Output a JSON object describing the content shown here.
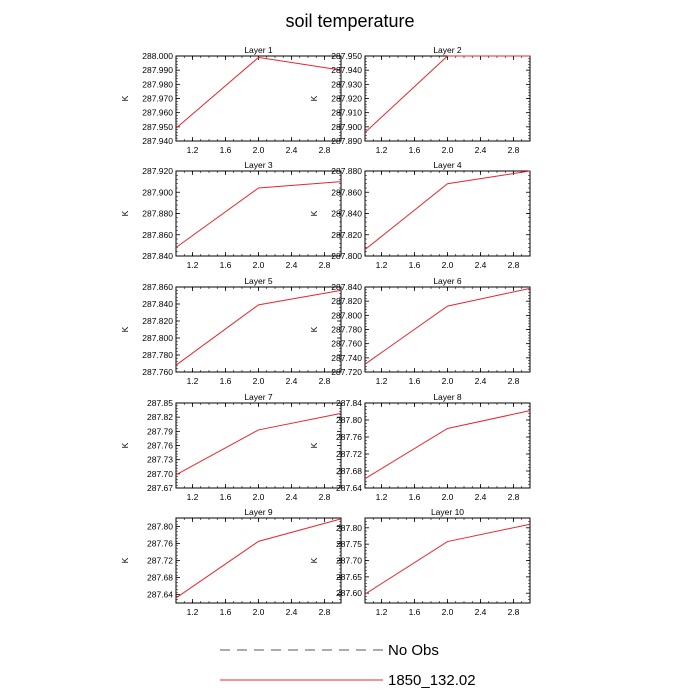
{
  "title": "soil temperature",
  "legend": [
    {
      "label": "No Obs",
      "style": "dashed",
      "color": "#55557a"
    },
    {
      "label": "1850_132.02",
      "style": "solid",
      "color": "#e8262b"
    }
  ],
  "chart_data": [
    {
      "type": "line",
      "title": "Layer 1",
      "ylabel": "K",
      "xlim": [
        1.0,
        3.0
      ],
      "ylim": [
        287.94,
        288.0
      ],
      "xticks": [
        1.2,
        1.6,
        2.0,
        2.4,
        2.8
      ],
      "xtick_labels": [
        "1.2",
        "1.6",
        "2.0",
        "2.4",
        "2.8"
      ],
      "yticks": [
        287.94,
        287.95,
        287.96,
        287.97,
        287.98,
        287.99,
        288.0
      ],
      "ytick_labels": [
        "287.940",
        "287.950",
        "287.960",
        "287.970",
        "287.980",
        "287.990",
        "288.000"
      ],
      "series": [
        {
          "name": "1850_132.02",
          "x": [
            1.0,
            2.0,
            3.0
          ],
          "y": [
            287.949,
            287.999,
            287.99
          ]
        }
      ]
    },
    {
      "type": "line",
      "title": "Layer 2",
      "ylabel": "K",
      "xlim": [
        1.0,
        3.0
      ],
      "ylim": [
        287.89,
        287.95
      ],
      "xticks": [
        1.2,
        1.6,
        2.0,
        2.4,
        2.8
      ],
      "xtick_labels": [
        "1.2",
        "1.6",
        "2.0",
        "2.4",
        "2.8"
      ],
      "yticks": [
        287.89,
        287.9,
        287.91,
        287.92,
        287.93,
        287.94,
        287.95
      ],
      "ytick_labels": [
        "287.890",
        "287.900",
        "287.910",
        "287.920",
        "287.930",
        "287.940",
        "287.950"
      ],
      "series": [
        {
          "name": "1850_132.02",
          "x": [
            1.0,
            2.0,
            3.0
          ],
          "y": [
            287.896,
            287.95,
            287.95
          ]
        }
      ]
    },
    {
      "type": "line",
      "title": "Layer 3",
      "ylabel": "K",
      "xlim": [
        1.0,
        3.0
      ],
      "ylim": [
        287.84,
        287.92
      ],
      "xticks": [
        1.2,
        1.6,
        2.0,
        2.4,
        2.8
      ],
      "xtick_labels": [
        "1.2",
        "1.6",
        "2.0",
        "2.4",
        "2.8"
      ],
      "yticks": [
        287.84,
        287.86,
        287.88,
        287.9,
        287.92
      ],
      "ytick_labels": [
        "287.840",
        "287.860",
        "287.880",
        "287.900",
        "287.920"
      ],
      "series": [
        {
          "name": "1850_132.02",
          "x": [
            1.0,
            2.0,
            3.0
          ],
          "y": [
            287.848,
            287.904,
            287.91
          ]
        }
      ]
    },
    {
      "type": "line",
      "title": "Layer 4",
      "ylabel": "K",
      "xlim": [
        1.0,
        3.0
      ],
      "ylim": [
        287.8,
        287.88
      ],
      "xticks": [
        1.2,
        1.6,
        2.0,
        2.4,
        2.8
      ],
      "xtick_labels": [
        "1.2",
        "1.6",
        "2.0",
        "2.4",
        "2.8"
      ],
      "yticks": [
        287.8,
        287.82,
        287.84,
        287.86,
        287.88
      ],
      "ytick_labels": [
        "287.800",
        "287.820",
        "287.840",
        "287.860",
        "287.880"
      ],
      "series": [
        {
          "name": "1850_132.02",
          "x": [
            1.0,
            2.0,
            3.0
          ],
          "y": [
            287.806,
            287.868,
            287.88
          ]
        }
      ]
    },
    {
      "type": "line",
      "title": "Layer 5",
      "ylabel": "K",
      "xlim": [
        1.0,
        3.0
      ],
      "ylim": [
        287.76,
        287.86
      ],
      "xticks": [
        1.2,
        1.6,
        2.0,
        2.4,
        2.8
      ],
      "xtick_labels": [
        "1.2",
        "1.6",
        "2.0",
        "2.4",
        "2.8"
      ],
      "yticks": [
        287.76,
        287.78,
        287.8,
        287.82,
        287.84,
        287.86
      ],
      "ytick_labels": [
        "287.760",
        "287.780",
        "287.800",
        "287.820",
        "287.840",
        "287.860"
      ],
      "series": [
        {
          "name": "1850_132.02",
          "x": [
            1.0,
            2.0,
            3.0
          ],
          "y": [
            287.768,
            287.839,
            287.856
          ]
        }
      ]
    },
    {
      "type": "line",
      "title": "Layer 6",
      "ylabel": "K",
      "xlim": [
        1.0,
        3.0
      ],
      "ylim": [
        287.72,
        287.84
      ],
      "xticks": [
        1.2,
        1.6,
        2.0,
        2.4,
        2.8
      ],
      "xtick_labels": [
        "1.2",
        "1.6",
        "2.0",
        "2.4",
        "2.8"
      ],
      "yticks": [
        287.72,
        287.74,
        287.76,
        287.78,
        287.8,
        287.82,
        287.84
      ],
      "ytick_labels": [
        "287.720",
        "287.740",
        "287.760",
        "287.780",
        "287.800",
        "287.820",
        "287.840"
      ],
      "series": [
        {
          "name": "1850_132.02",
          "x": [
            1.0,
            2.0,
            3.0
          ],
          "y": [
            287.731,
            287.813,
            287.838
          ]
        }
      ]
    },
    {
      "type": "line",
      "title": "Layer 7",
      "ylabel": "K",
      "xlim": [
        1.0,
        3.0
      ],
      "ylim": [
        287.67,
        287.85
      ],
      "xticks": [
        1.2,
        1.6,
        2.0,
        2.4,
        2.8
      ],
      "xtick_labels": [
        "1.2",
        "1.6",
        "2.0",
        "2.4",
        "2.8"
      ],
      "yticks": [
        287.67,
        287.7,
        287.73,
        287.76,
        287.79,
        287.82,
        287.85
      ],
      "ytick_labels": [
        "287.67",
        "287.70",
        "287.73",
        "287.76",
        "287.79",
        "287.82",
        "287.85"
      ],
      "series": [
        {
          "name": "1850_132.02",
          "x": [
            1.0,
            2.0,
            3.0
          ],
          "y": [
            287.698,
            287.793,
            287.828
          ]
        }
      ]
    },
    {
      "type": "line",
      "title": "Layer 8",
      "ylabel": "K",
      "xlim": [
        1.0,
        3.0
      ],
      "ylim": [
        287.64,
        287.84
      ],
      "xticks": [
        1.2,
        1.6,
        2.0,
        2.4,
        2.8
      ],
      "xtick_labels": [
        "1.2",
        "1.6",
        "2.0",
        "2.4",
        "2.8"
      ],
      "yticks": [
        287.64,
        287.68,
        287.72,
        287.76,
        287.8,
        287.84
      ],
      "ytick_labels": [
        "287.64",
        "287.68",
        "287.72",
        "287.76",
        "287.80",
        "287.84"
      ],
      "series": [
        {
          "name": "1850_132.02",
          "x": [
            1.0,
            2.0,
            3.0
          ],
          "y": [
            287.662,
            287.78,
            287.822
          ]
        }
      ]
    },
    {
      "type": "line",
      "title": "Layer 9",
      "ylabel": "K",
      "xlim": [
        1.0,
        3.0
      ],
      "ylim": [
        287.62,
        287.82
      ],
      "xticks": [
        1.2,
        1.6,
        2.0,
        2.4,
        2.8
      ],
      "xtick_labels": [
        "1.2",
        "1.6",
        "2.0",
        "2.4",
        "2.8"
      ],
      "yticks": [
        287.64,
        287.68,
        287.72,
        287.76,
        287.8
      ],
      "ytick_labels": [
        "287.64",
        "287.68",
        "287.72",
        "287.76",
        "287.80"
      ],
      "series": [
        {
          "name": "1850_132.02",
          "x": [
            1.0,
            2.0,
            3.0
          ],
          "y": [
            287.632,
            287.765,
            287.818
          ]
        }
      ]
    },
    {
      "type": "line",
      "title": "Layer 10",
      "ylabel": "K",
      "xlim": [
        1.0,
        3.0
      ],
      "ylim": [
        287.57,
        287.83
      ],
      "xticks": [
        1.2,
        1.6,
        2.0,
        2.4,
        2.8
      ],
      "xtick_labels": [
        "1.2",
        "1.6",
        "2.0",
        "2.4",
        "2.8"
      ],
      "yticks": [
        287.6,
        287.65,
        287.7,
        287.75,
        287.8
      ],
      "ytick_labels": [
        "287.60",
        "287.65",
        "287.70",
        "287.75",
        "287.80"
      ],
      "series": [
        {
          "name": "1850_132.02",
          "x": [
            1.0,
            2.0,
            3.0
          ],
          "y": [
            287.597,
            287.758,
            287.811
          ]
        }
      ]
    }
  ]
}
